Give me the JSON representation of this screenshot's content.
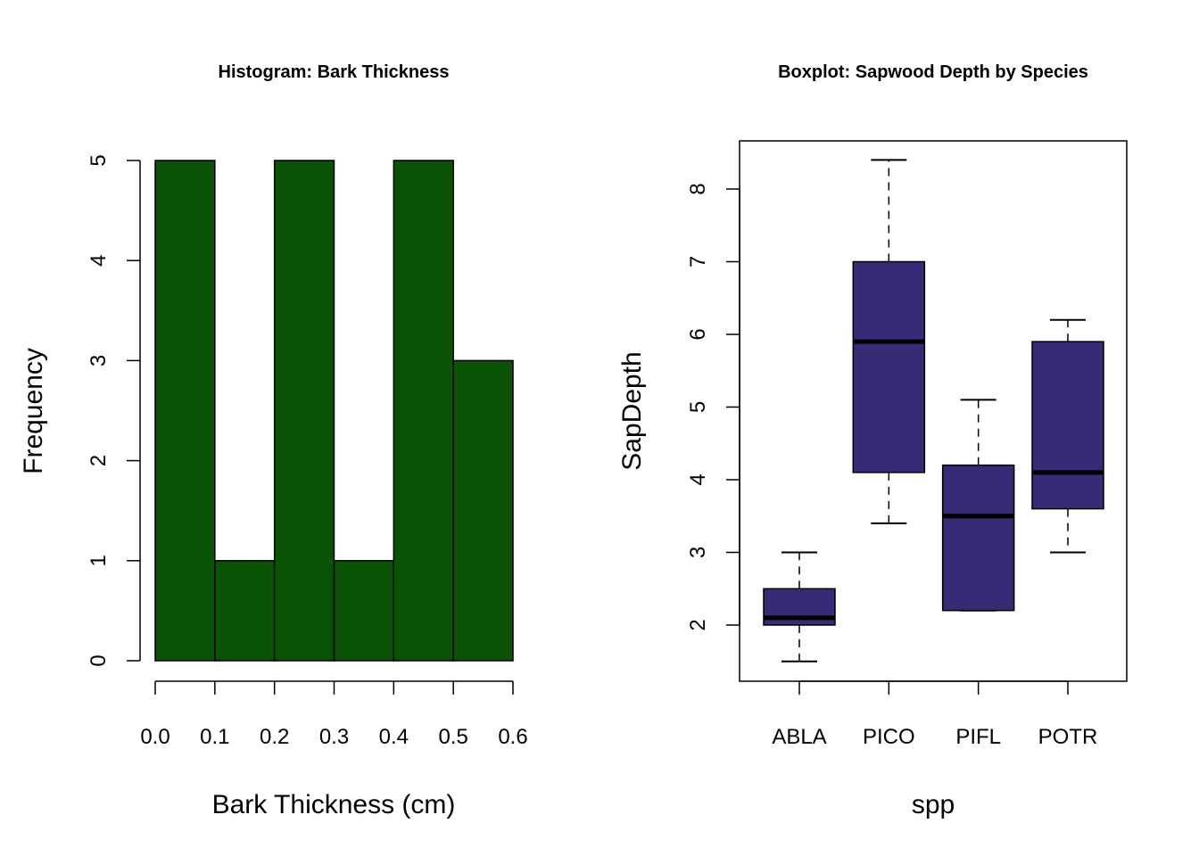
{
  "chart_data": [
    {
      "type": "bar",
      "title": "Histogram: Bark Thickness",
      "xlabel": "Bark Thickness (cm)",
      "ylabel": "Frequency",
      "bins": [
        {
          "start": 0.0,
          "end": 0.1,
          "count": 5
        },
        {
          "start": 0.1,
          "end": 0.2,
          "count": 1
        },
        {
          "start": 0.2,
          "end": 0.3,
          "count": 5
        },
        {
          "start": 0.3,
          "end": 0.4,
          "count": 1
        },
        {
          "start": 0.4,
          "end": 0.5,
          "count": 5
        },
        {
          "start": 0.5,
          "end": 0.6,
          "count": 3
        }
      ],
      "x_ticks": [
        "0.0",
        "0.1",
        "0.2",
        "0.3",
        "0.4",
        "0.5",
        "0.6"
      ],
      "y_ticks": [
        "0",
        "1",
        "2",
        "3",
        "4",
        "5"
      ],
      "xlim": [
        0,
        0.6
      ],
      "ylim": [
        0,
        5
      ],
      "bar_color": "#0b5304",
      "grid": false
    },
    {
      "type": "box",
      "title": "Boxplot: Sapwood Depth by Species",
      "xlabel": "spp",
      "ylabel": "SapDepth",
      "categories": [
        "ABLA",
        "PICO",
        "PIFL",
        "POTR"
      ],
      "boxes": [
        {
          "name": "ABLA",
          "min": 1.5,
          "q1": 2.0,
          "median": 2.1,
          "q3": 2.5,
          "max": 3.0
        },
        {
          "name": "PICO",
          "min": 3.4,
          "q1": 4.1,
          "median": 5.9,
          "q3": 7.0,
          "max": 8.4
        },
        {
          "name": "PIFL",
          "min": 2.2,
          "q1": 2.2,
          "median": 3.5,
          "q3": 4.2,
          "max": 5.1
        },
        {
          "name": "POTR",
          "min": 3.0,
          "q1": 3.6,
          "median": 4.1,
          "q3": 5.9,
          "max": 6.2
        }
      ],
      "y_ticks": [
        "2",
        "3",
        "4",
        "5",
        "6",
        "7",
        "8"
      ],
      "ylim": [
        1.5,
        8.4
      ],
      "box_color": "#382a77",
      "grid": false
    }
  ]
}
